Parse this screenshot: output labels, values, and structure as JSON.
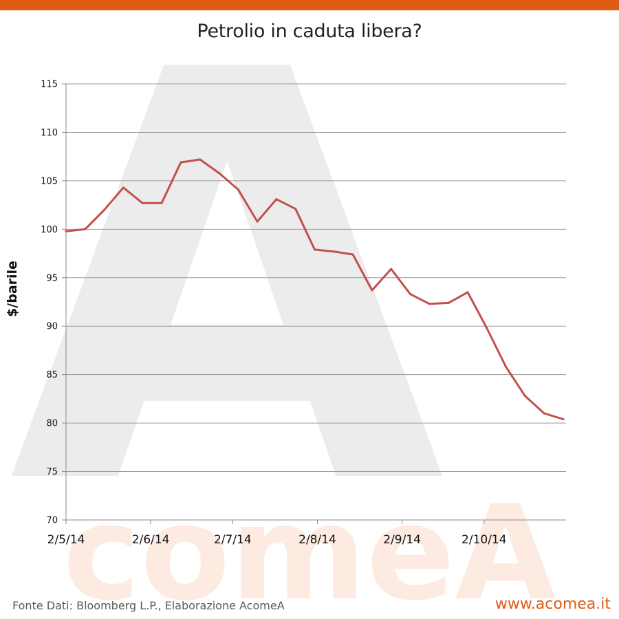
{
  "title": "Petrolio in caduta libera?",
  "ylabel": "$/barile",
  "footer": {
    "source": "Fonte Dati: Bloomberg L.P., Elaborazione AcomeA",
    "site": "www.acomea.it"
  },
  "watermark": {
    "letter": "A",
    "word": "comeA"
  },
  "colors": {
    "top_bar": "#e05a12",
    "line": "#c0504d",
    "site": "#e05a12",
    "watermark_letter": "#ececec",
    "watermark_word": "#fdebe2"
  },
  "chart_data": {
    "type": "line",
    "title": "Petrolio in caduta libera?",
    "xlabel": "",
    "ylabel": "$/barile",
    "ylim": [
      70,
      115
    ],
    "yticks": [
      70,
      75,
      80,
      85,
      90,
      95,
      100,
      105,
      110,
      115
    ],
    "xlim": [
      "2014-05-02",
      "2014-11-01"
    ],
    "xtick_labels": [
      "2/5/14",
      "2/6/14",
      "2/7/14",
      "2/8/14",
      "2/9/14",
      "2/10/14"
    ],
    "xtick_dates": [
      "2014-05-02",
      "2014-06-02",
      "2014-07-02",
      "2014-08-02",
      "2014-09-02",
      "2014-10-02"
    ],
    "grid": true,
    "series": [
      {
        "x": [
          "2014-05-02",
          "2014-05-09",
          "2014-05-16",
          "2014-05-23",
          "2014-05-30",
          "2014-06-06",
          "2014-06-13",
          "2014-06-20",
          "2014-06-27",
          "2014-07-04",
          "2014-07-11",
          "2014-07-18",
          "2014-07-25",
          "2014-08-01",
          "2014-08-08",
          "2014-08-15",
          "2014-08-22",
          "2014-08-29",
          "2014-09-05",
          "2014-09-12",
          "2014-09-19",
          "2014-09-26",
          "2014-10-03",
          "2014-10-10",
          "2014-10-17",
          "2014-10-24",
          "2014-10-31"
        ],
        "values": [
          99.8,
          100.0,
          102.0,
          104.3,
          102.7,
          102.7,
          106.9,
          107.2,
          105.8,
          104.1,
          100.8,
          103.1,
          102.1,
          97.9,
          97.7,
          97.4,
          93.7,
          95.9,
          93.3,
          92.3,
          92.4,
          93.5,
          89.8,
          85.8,
          82.8,
          81.0,
          80.4
        ]
      }
    ]
  }
}
